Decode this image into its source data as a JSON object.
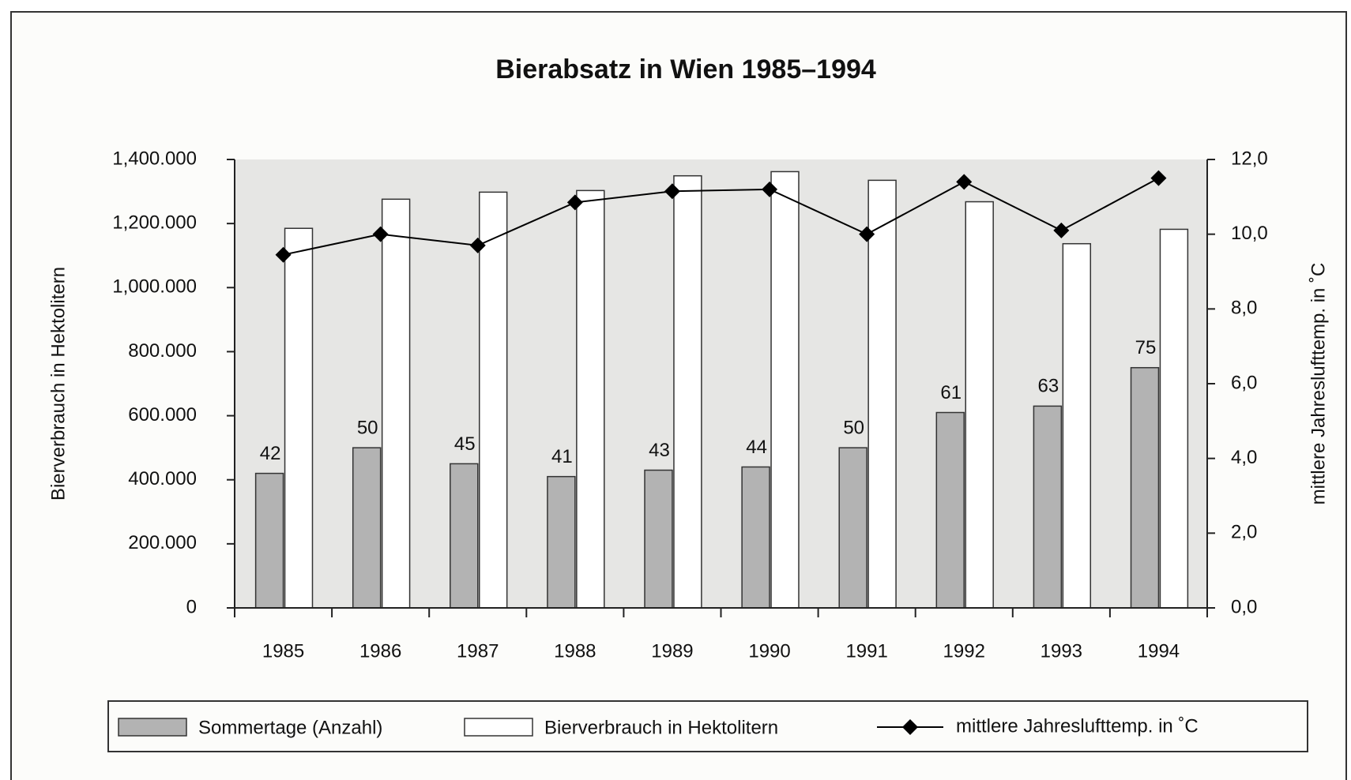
{
  "chart_data": {
    "type": "bar",
    "title": "Bierabsatz in Wien 1985–1994",
    "ylabel": "Bierverbrauch in Hektolitern",
    "y2label": "mittlere Jahreslufttemp. in ˚C",
    "categories": [
      "1985",
      "1986",
      "1987",
      "1988",
      "1989",
      "1990",
      "1991",
      "1992",
      "1993",
      "1994"
    ],
    "ylim": [
      0,
      1400000
    ],
    "yticks": [
      0,
      {
        "value": 200000,
        "label": "200.000"
      },
      {
        "value": 400000,
        "label": "400.000"
      },
      {
        "value": 600000,
        "label": "600.000"
      },
      {
        "value": 800000,
        "label": "800.000"
      },
      {
        "value": 1000000,
        "label": "1,000.000"
      },
      {
        "value": 1200000,
        "label": "1,200.000"
      },
      {
        "value": 1400000,
        "label": "1,400.000"
      }
    ],
    "y2lim": [
      0,
      12
    ],
    "y2ticks": [
      {
        "value": 0,
        "label": "0,0"
      },
      {
        "value": 2,
        "label": "2,0"
      },
      {
        "value": 4,
        "label": "4,0"
      },
      {
        "value": 6,
        "label": "6,0"
      },
      {
        "value": 8,
        "label": "8,0"
      },
      {
        "value": 10,
        "label": "10,0"
      },
      {
        "value": 12,
        "label": "12,0"
      }
    ],
    "series": [
      {
        "name": "Sommertage (Anzahl)",
        "color": "#b3b3b3",
        "values": [
          420000,
          500000,
          450000,
          410000,
          430000,
          440000,
          500000,
          610000,
          630000,
          750000
        ],
        "value_labels": [
          "42",
          "50",
          "45",
          "41",
          "43",
          "44",
          "50",
          "61",
          "63",
          "75"
        ]
      },
      {
        "name": "Bierverbrauch in Hektolitern",
        "color": "#ffffff",
        "values": [
          1185000,
          1276000,
          1298000,
          1303000,
          1349000,
          1362000,
          1335000,
          1268000,
          1137000,
          1182000
        ]
      },
      {
        "name": "mittlere Jahreslufttemp. in ˚C",
        "type": "line",
        "axis": "y2",
        "color": "#000000",
        "values": [
          9.45,
          10.0,
          9.7,
          10.85,
          11.15,
          11.2,
          10.0,
          11.4,
          10.1,
          11.5
        ]
      }
    ],
    "legend": "bottom"
  }
}
